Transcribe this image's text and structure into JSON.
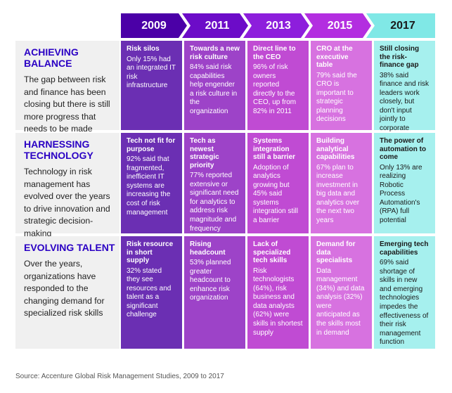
{
  "years": [
    "2009",
    "2011",
    "2013",
    "2015",
    "2017"
  ],
  "colors": {
    "c2009": "#6b2fb3",
    "c2011": "#9d43c8",
    "c2013": "#c04bd3",
    "c2015": "#d772e0",
    "c2017": "#a6f0ee",
    "header2009": "#4b00a7",
    "header2011": "#6c0cc8",
    "header2013": "#8d1edc",
    "header2015": "#b32ee0",
    "header2017": "#80e8e6",
    "rowTitle": "#2a00c4"
  },
  "rows": [
    {
      "title": "ACHIEVING BALANCE",
      "description": "The gap between risk and finance has been closing but there is still more progress that needs to be made",
      "cells": [
        {
          "title": "Risk silos",
          "body": "Only 15% had an integrated IT risk infrastructure"
        },
        {
          "title": "Towards a new risk culture",
          "body": "84% said risk capabilities help engender a risk culture in the organization"
        },
        {
          "title": "Direct line to the CEO",
          "body": "96% of risk owners reported directly to the CEO, up from 82% in 2011"
        },
        {
          "title": "CRO at the executive table",
          "body": "79% said the CRO is important to strategic planning decisions"
        },
        {
          "title": "Still closing the risk-finance gap",
          "body": "38% said finance and risk leaders work closely, but don't input jointly to corporate strategy"
        }
      ]
    },
    {
      "title": "HARNESSING TECHNOLOGY",
      "description": "Technology in risk management has evolved over the years to drive innovation and strategic decision-making",
      "cells": [
        {
          "title": "Tech not fit for purpose",
          "body": "92% said that fragmented, inefficient IT systems are increasing the cost of risk management"
        },
        {
          "title": "Tech as newest strategic priority",
          "body": "77% reported extensive or significant need for analytics to address risk magnitude and frequency"
        },
        {
          "title": "Systems integration still a barrier",
          "body": "Adoption of analytics growing but 45% said systems integration still a barrier"
        },
        {
          "title": "Building analytical capabilities",
          "body": "67% plan to increase investment in big data and analytics over the next two years"
        },
        {
          "title": "The power of automation to come",
          "body": "Only 13% are realizing Robotic Process Automation's (RPA) full potential"
        }
      ]
    },
    {
      "title": "EVOLVING TALENT",
      "description": "Over the years, organizations have responded to the changing demand for specialized risk skills",
      "cells": [
        {
          "title": "Risk resource in short supply",
          "body": "32% stated they see resources and talent as a significant challenge"
        },
        {
          "title": "Rising headcount",
          "body": "53% planned greater headcount to enhance risk organization"
        },
        {
          "title": "Lack of specialized tech skills",
          "body": "Risk technologists (64%), risk business and data analysts (62%) were skills in shortest supply"
        },
        {
          "title": "Demand for data specialists",
          "body": "Data management (34%) and data analysis (32%) were anticipated as the skills most in demand"
        },
        {
          "title": "Emerging tech capabilities",
          "body": "69% said shortage of skills in new and emerging technologies impedes the effectiveness of their risk management function"
        }
      ]
    }
  ],
  "source": "Source: Accenture Global Risk Management Studies, 2009 to 2017"
}
